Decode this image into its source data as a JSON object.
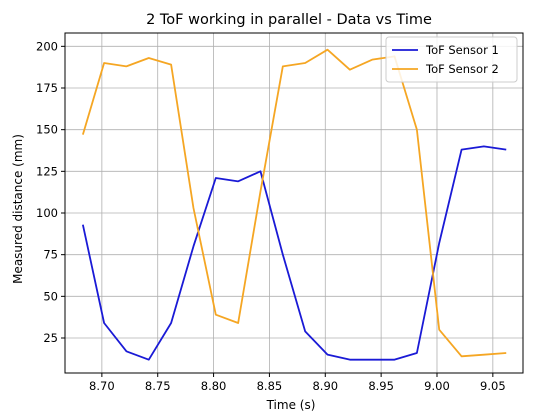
{
  "chart_data": {
    "type": "line",
    "title": "2 ToF working in parallel - Data vs Time",
    "xlabel": "Time (s)",
    "ylabel": "Measured distance (mm)",
    "xlim": [
      8.667,
      9.077
    ],
    "ylim": [
      4,
      208
    ],
    "xticks": [
      8.7,
      8.75,
      8.8,
      8.85,
      8.9,
      8.95,
      9.0,
      9.05
    ],
    "xtick_labels": [
      "8.70",
      "8.75",
      "8.80",
      "8.85",
      "8.90",
      "8.95",
      "9.00",
      "9.05"
    ],
    "yticks": [
      25,
      50,
      75,
      100,
      125,
      150,
      175,
      200
    ],
    "ytick_labels": [
      "25",
      "50",
      "75",
      "100",
      "125",
      "150",
      "175",
      "200"
    ],
    "grid": true,
    "legend_position": "top-right",
    "series": [
      {
        "name": "ToF Sensor 1",
        "color": "#1a1ad6",
        "x": [
          8.683,
          8.702,
          8.722,
          8.742,
          8.762,
          8.782,
          8.802,
          8.822,
          8.842,
          8.862,
          8.882,
          8.902,
          8.922,
          8.942,
          8.962,
          8.982,
          9.002,
          9.022,
          9.042,
          9.062
        ],
        "y": [
          93,
          34,
          17,
          12,
          34,
          80,
          121,
          119,
          125,
          75,
          29,
          15,
          12,
          12,
          12,
          16,
          82,
          138,
          140,
          138
        ]
      },
      {
        "name": "ToF Sensor 2",
        "color": "#f5a623",
        "x": [
          8.683,
          8.702,
          8.722,
          8.742,
          8.762,
          8.782,
          8.802,
          8.822,
          8.842,
          8.862,
          8.882,
          8.902,
          8.922,
          8.942,
          8.962,
          8.982,
          9.002,
          9.022,
          9.042,
          9.062
        ],
        "y": [
          147,
          190,
          188,
          193,
          189,
          103,
          39,
          34,
          113,
          188,
          190,
          198,
          186,
          192,
          194,
          150,
          30,
          14,
          15,
          16
        ]
      }
    ]
  }
}
